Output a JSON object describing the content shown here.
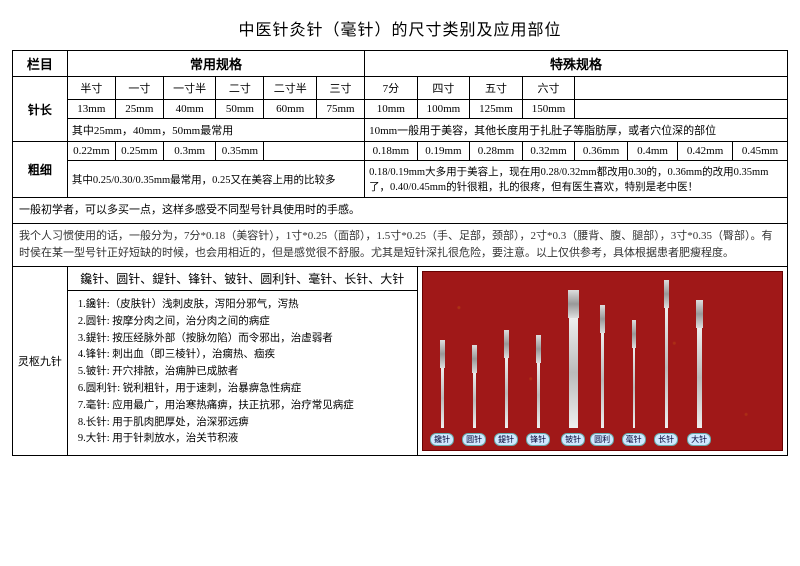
{
  "title": "中医针灸针（毫针）的尺寸类别及应用部位",
  "colhead": {
    "lanmu": "栏目",
    "common": "常用规格",
    "special": "特殊规格"
  },
  "len": {
    "label": "针长",
    "common_units": [
      "半寸",
      "一寸",
      "一寸半",
      "二寸",
      "二寸半",
      "三寸"
    ],
    "common_mm": [
      "13mm",
      "25mm",
      "40mm",
      "50mm",
      "60mm",
      "75mm"
    ],
    "special_units": [
      "7分",
      "四寸",
      "五寸",
      "六寸"
    ],
    "special_mm": [
      "10mm",
      "100mm",
      "125mm",
      "150mm"
    ],
    "common_note": "其中25mm，40mm，50mm最常用",
    "special_note": "10mm一般用于美容，其他长度用于扎肚子等脂肪厚，或者穴位深的部位"
  },
  "dia": {
    "label": "粗细",
    "common": [
      "0.22mm",
      "0.25mm",
      "0.3mm",
      "0.35mm"
    ],
    "special": [
      "0.18mm",
      "0.19mm",
      "0.28mm",
      "0.32mm",
      "0.36mm",
      "0.4mm",
      "0.42mm",
      "0.45mm"
    ],
    "common_note": "其中0.25/0.30/0.35mm最常用，0.25又在美容上用的比较多",
    "special_note": "0.18/0.19mm大多用于美容上，现在用0.28/0.32mm都改用0.30的，0.36mm的改用0.35mm了，0.40/0.45mm的针很粗，扎的很疼，但有医生喜欢，特别是老中医！"
  },
  "beginner_note": "一般初学者，可以多买一点，这样多感受不同型号针具使用时的手感。",
  "personal_note": "我个人习惯使用的话，一般分为，7分*0.18（美容针），1寸*0.25（面部），1.5寸*0.25（手、足部，颈部），2寸*0.3（腰背、腹、腿部），3寸*0.35（臀部）。有时侯在某一型号针正好短缺的时候，也会用相近的，但是感觉很不舒服。尤其是短针深扎很危险，要注意。以上仅供参考，具体根据患者肥瘦程度。",
  "nine": {
    "side_label": "灵枢九针",
    "header": "鑱针、圆针、鍉针、锋针、铍针、圆利针、毫针、长针、大针",
    "items": [
      "1.鑱针:（皮肤针）浅刺皮肤，泻阳分邪气，泻热",
      "2.圆针: 按摩分肉之间，治分肉之间的病症",
      "3.鍉针: 按压经脉外部（按脉勿陷）而令邪出，治虚弱者",
      "4.锋针: 刺出血（即三棱针），治瘸热、痼疾",
      "5.铍针: 开穴排脓，治痈肿已成脓者",
      "6.圆利针: 锐利粗针，用于速刺，治暴痹急性病症",
      "7.毫针: 应用最广，用治寒热痛痹，扶正抗邪，治疗常见病症",
      "8.长针: 用于肌肉肥厚处，治深邪远痹",
      "9.大针: 用于针刺放水，治关节积液"
    ],
    "tags": [
      "鑱针",
      "圆针",
      "鍉针",
      "锋针",
      "铍针",
      "圆利",
      "毫针",
      "长针",
      "大针"
    ]
  }
}
